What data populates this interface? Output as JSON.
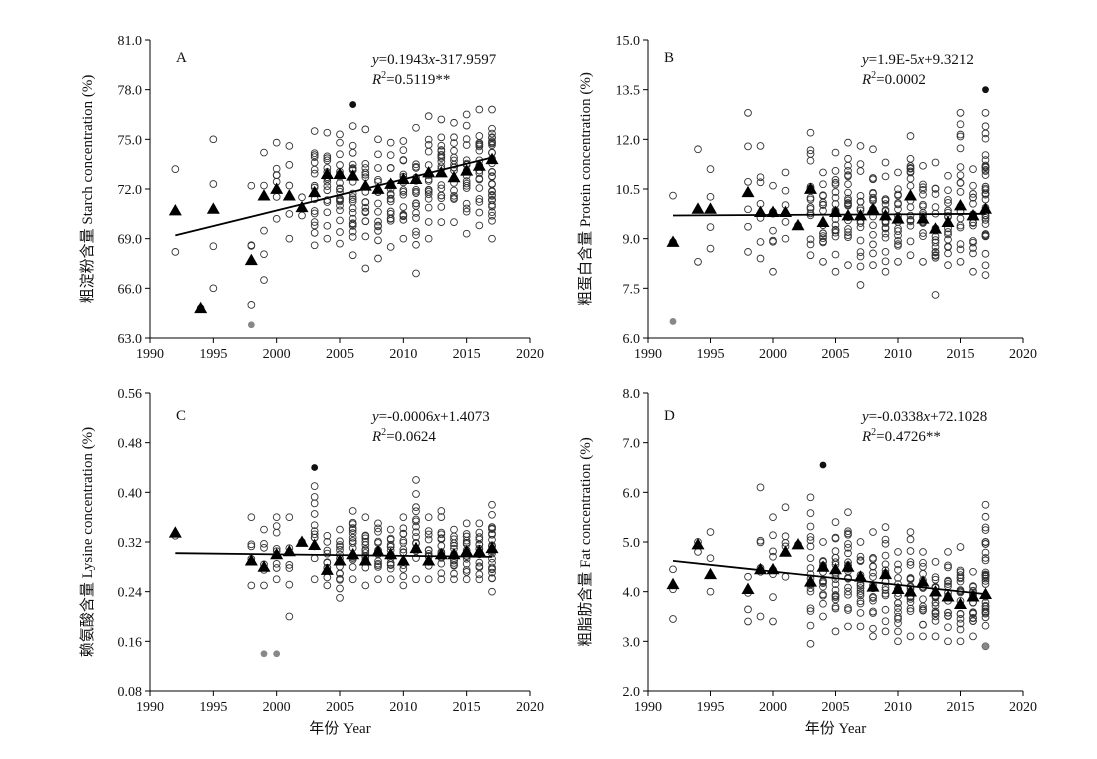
{
  "colors": {
    "open_marker_stroke": "#333333",
    "outlier_filled": "#111111",
    "outlier_grey": "#888888",
    "mean_triangle": "#000000",
    "fit_line": "#000000"
  },
  "chart_data": [
    {
      "type": "scatter",
      "panel": "A",
      "ylabel": "粗淀粉含量 Starch concentration (%)",
      "xlabel": "",
      "xlim": [
        1990,
        2020
      ],
      "xticks": [
        "1990",
        "1995",
        "2000",
        "2005",
        "2010",
        "2015",
        "2020"
      ],
      "ylim": [
        63.0,
        81.0
      ],
      "yticks": [
        "63.0",
        "66.0",
        "69.0",
        "72.0",
        "75.0",
        "78.0",
        "81.0"
      ],
      "equation": {
        "y_part": "y",
        "rhs": "=0.1943",
        "x_part": "x",
        "tail": "-317.9597"
      },
      "r2": {
        "label": "R",
        "sup": "2",
        "value": "=0.5119**"
      },
      "fit": {
        "x": [
          1992,
          2017
        ],
        "y": [
          69.2,
          73.9
        ]
      },
      "means": {
        "x": [
          1992,
          1994,
          1995,
          1998,
          1999,
          2000,
          2001,
          2002,
          2003,
          2004,
          2005,
          2006,
          2007,
          2008,
          2009,
          2010,
          2011,
          2012,
          2013,
          2014,
          2015,
          2016,
          2017
        ],
        "y": [
          70.7,
          64.8,
          70.8,
          67.7,
          71.6,
          72.0,
          71.6,
          70.9,
          71.8,
          72.9,
          72.9,
          72.8,
          72.2,
          72.0,
          72.3,
          72.6,
          72.6,
          73.0,
          73.0,
          72.7,
          73.1,
          73.4,
          73.8
        ]
      },
      "outliers": [
        {
          "x": 2006,
          "y": 77.1,
          "color": "black"
        },
        {
          "x": 1998,
          "y": 63.8,
          "color": "grey"
        }
      ],
      "spread": {
        "x": [
          1992,
          1994,
          1995,
          1998,
          1999,
          2000,
          2001,
          2002,
          2003,
          2004,
          2005,
          2006,
          2007,
          2008,
          2009,
          2010,
          2011,
          2012,
          2013,
          2014,
          2015,
          2016,
          2017
        ],
        "min": [
          68.2,
          64.8,
          66.0,
          65.0,
          66.5,
          70.2,
          69.0,
          70.4,
          68.6,
          69.0,
          68.7,
          68.0,
          67.2,
          67.8,
          68.5,
          69.0,
          66.9,
          69.0,
          70.0,
          70.0,
          69.3,
          69.8,
          69.0
        ],
        "max": [
          73.2,
          64.8,
          75.0,
          72.2,
          74.2,
          74.8,
          74.6,
          71.5,
          75.5,
          75.4,
          75.3,
          75.8,
          75.6,
          75.0,
          74.8,
          74.9,
          75.7,
          76.4,
          76.2,
          76.0,
          76.5,
          76.8,
          76.8
        ],
        "n": [
          2,
          1,
          4,
          4,
          5,
          7,
          5,
          2,
          16,
          16,
          20,
          22,
          16,
          16,
          18,
          18,
          18,
          16,
          18,
          16,
          18,
          18,
          32
        ]
      }
    },
    {
      "type": "scatter",
      "panel": "B",
      "ylabel": "粗蛋白含量 Protein concentration (%)",
      "xlabel": "",
      "xlim": [
        1990,
        2020
      ],
      "xticks": [
        "1990",
        "1995",
        "2000",
        "2005",
        "2010",
        "2015",
        "2020"
      ],
      "ylim": [
        6.0,
        15.0
      ],
      "yticks": [
        "6.0",
        "7.5",
        "9.0",
        "10.5",
        "12.0",
        "13.5",
        "15.0"
      ],
      "equation": {
        "y_part": "y",
        "rhs": "=1.9E-5",
        "x_part": "x",
        "tail": "+9.3212"
      },
      "r2": {
        "label": "R",
        "sup": "2",
        "value": "=0.0002"
      },
      "fit": {
        "x": [
          1992,
          2017
        ],
        "y": [
          9.7,
          9.75
        ]
      },
      "means": {
        "x": [
          1992,
          1994,
          1995,
          1998,
          1999,
          2000,
          2001,
          2002,
          2003,
          2004,
          2005,
          2006,
          2007,
          2008,
          2009,
          2010,
          2011,
          2012,
          2013,
          2014,
          2015,
          2016,
          2017
        ],
        "y": [
          8.9,
          9.9,
          9.9,
          10.4,
          9.8,
          9.8,
          9.8,
          9.4,
          10.5,
          9.5,
          9.8,
          9.7,
          9.7,
          9.9,
          9.7,
          9.6,
          10.3,
          9.6,
          9.3,
          9.5,
          10.0,
          9.7,
          9.9
        ]
      },
      "outliers": [
        {
          "x": 2017,
          "y": 13.5,
          "color": "black"
        },
        {
          "x": 1992,
          "y": 6.5,
          "color": "grey"
        }
      ],
      "spread": {
        "x": [
          1992,
          1994,
          1995,
          1998,
          1999,
          2000,
          2001,
          2002,
          2003,
          2004,
          2005,
          2006,
          2007,
          2008,
          2009,
          2010,
          2011,
          2012,
          2013,
          2014,
          2015,
          2016,
          2017
        ],
        "min": [
          8.9,
          8.3,
          8.7,
          8.6,
          8.4,
          8.0,
          9.0,
          9.4,
          8.5,
          8.3,
          8.0,
          8.2,
          7.6,
          8.2,
          8.0,
          8.3,
          8.5,
          8.3,
          7.3,
          8.2,
          8.3,
          8.0,
          7.9
        ],
        "max": [
          10.3,
          11.7,
          11.1,
          12.8,
          11.8,
          10.6,
          11.0,
          9.4,
          12.2,
          11.0,
          11.6,
          11.9,
          11.8,
          11.7,
          11.3,
          11.0,
          12.1,
          11.2,
          11.3,
          10.9,
          12.8,
          11.1,
          12.8
        ],
        "n": [
          2,
          2,
          4,
          6,
          7,
          7,
          5,
          1,
          16,
          16,
          20,
          22,
          16,
          16,
          18,
          18,
          18,
          16,
          18,
          16,
          18,
          18,
          34
        ]
      }
    },
    {
      "type": "scatter",
      "panel": "C",
      "ylabel": "赖氨酸含量 Lysine concentration (%)",
      "xlabel": "",
      "xlim": [
        1990,
        2020
      ],
      "xticks": [
        "1990",
        "1995",
        "2000",
        "2005",
        "2010",
        "2015",
        "2020"
      ],
      "ylim": [
        0.08,
        0.56
      ],
      "yticks": [
        "0.08",
        "0.16",
        "0.24",
        "0.32",
        "0.40",
        "0.48",
        "0.56"
      ],
      "equation": {
        "y_part": "y",
        "rhs": "=-0.0006",
        "x_part": "x",
        "tail": "+1.4073"
      },
      "r2": {
        "label": "R",
        "sup": "2",
        "value": "=0.0624"
      },
      "fit": {
        "x": [
          1992,
          2017
        ],
        "y": [
          0.302,
          0.296
        ]
      },
      "means": {
        "x": [
          1992,
          1998,
          1999,
          2000,
          2001,
          2002,
          2003,
          2004,
          2005,
          2006,
          2007,
          2008,
          2009,
          2010,
          2011,
          2012,
          2013,
          2014,
          2015,
          2016,
          2017
        ],
        "y": [
          0.335,
          0.29,
          0.28,
          0.3,
          0.305,
          0.32,
          0.315,
          0.275,
          0.29,
          0.3,
          0.29,
          0.305,
          0.3,
          0.29,
          0.31,
          0.29,
          0.3,
          0.3,
          0.305,
          0.305,
          0.31
        ]
      },
      "outliers": [
        {
          "x": 2003,
          "y": 0.44,
          "color": "black"
        },
        {
          "x": 1999,
          "y": 0.14,
          "color": "grey"
        },
        {
          "x": 2000,
          "y": 0.14,
          "color": "grey"
        }
      ],
      "spread": {
        "x": [
          1992,
          1998,
          1999,
          2000,
          2001,
          2002,
          2003,
          2004,
          2005,
          2006,
          2007,
          2008,
          2009,
          2010,
          2011,
          2012,
          2013,
          2014,
          2015,
          2016,
          2017
        ],
        "min": [
          0.33,
          0.25,
          0.25,
          0.26,
          0.2,
          0.32,
          0.26,
          0.25,
          0.23,
          0.26,
          0.25,
          0.26,
          0.26,
          0.25,
          0.26,
          0.26,
          0.26,
          0.26,
          0.26,
          0.26,
          0.24
        ],
        "max": [
          0.34,
          0.36,
          0.34,
          0.36,
          0.36,
          0.32,
          0.41,
          0.33,
          0.34,
          0.37,
          0.36,
          0.35,
          0.34,
          0.36,
          0.42,
          0.36,
          0.37,
          0.34,
          0.35,
          0.35,
          0.38
        ],
        "n": [
          1,
          5,
          6,
          8,
          6,
          1,
          12,
          10,
          14,
          16,
          14,
          14,
          14,
          14,
          16,
          12,
          14,
          14,
          14,
          14,
          24
        ]
      }
    },
    {
      "type": "scatter",
      "panel": "D",
      "ylabel": "粗脂肪含量 Fat concentration (%)",
      "xlabel": "年份 Year",
      "xlim": [
        1990,
        2020
      ],
      "xticks": [
        "1990",
        "1995",
        "2000",
        "2005",
        "2010",
        "2015",
        "2020"
      ],
      "ylim": [
        2.0,
        8.0
      ],
      "yticks": [
        "2.0",
        "3.0",
        "4.0",
        "5.0",
        "6.0",
        "7.0",
        "8.0"
      ],
      "equation": {
        "y_part": "y",
        "rhs": "=-0.0338",
        "x_part": "x",
        "tail": "+72.1028"
      },
      "r2": {
        "label": "R",
        "sup": "2",
        "value": "=0.4726**"
      },
      "fit": {
        "x": [
          1992,
          2017
        ],
        "y": [
          4.62,
          3.95
        ]
      },
      "means": {
        "x": [
          1992,
          1994,
          1995,
          1998,
          1999,
          2000,
          2001,
          2002,
          2003,
          2004,
          2005,
          2006,
          2007,
          2008,
          2009,
          2010,
          2011,
          2012,
          2013,
          2014,
          2015,
          2016,
          2017
        ],
        "y": [
          4.15,
          4.95,
          4.35,
          4.05,
          4.45,
          4.45,
          4.8,
          4.95,
          4.2,
          4.5,
          4.45,
          4.5,
          4.3,
          4.1,
          4.35,
          4.05,
          4.0,
          4.2,
          4.0,
          3.9,
          3.75,
          3.9,
          3.95
        ]
      },
      "outliers": [
        {
          "x": 2004,
          "y": 6.55,
          "color": "black"
        },
        {
          "x": 2017,
          "y": 2.9,
          "color": "grey"
        }
      ],
      "spread": {
        "x": [
          1992,
          1994,
          1995,
          1998,
          1999,
          2000,
          2001,
          2002,
          2003,
          2004,
          2005,
          2006,
          2007,
          2008,
          2009,
          2010,
          2011,
          2012,
          2013,
          2014,
          2015,
          2016,
          2017
        ],
        "min": [
          3.45,
          4.8,
          4.0,
          3.4,
          3.5,
          3.4,
          4.3,
          4.95,
          2.95,
          3.5,
          3.2,
          3.3,
          3.3,
          3.1,
          3.2,
          3.0,
          3.1,
          3.1,
          3.1,
          3.0,
          3.0,
          3.1,
          2.9
        ],
        "max": [
          4.45,
          5.0,
          5.2,
          4.3,
          6.1,
          5.5,
          5.7,
          4.95,
          5.9,
          5.0,
          5.4,
          5.6,
          5.0,
          5.2,
          5.3,
          4.8,
          5.2,
          4.8,
          4.6,
          4.8,
          4.9,
          4.4,
          5.75
        ],
        "n": [
          3,
          2,
          3,
          4,
          6,
          8,
          5,
          1,
          18,
          16,
          20,
          22,
          16,
          16,
          18,
          18,
          18,
          16,
          18,
          16,
          18,
          18,
          32
        ]
      }
    }
  ]
}
